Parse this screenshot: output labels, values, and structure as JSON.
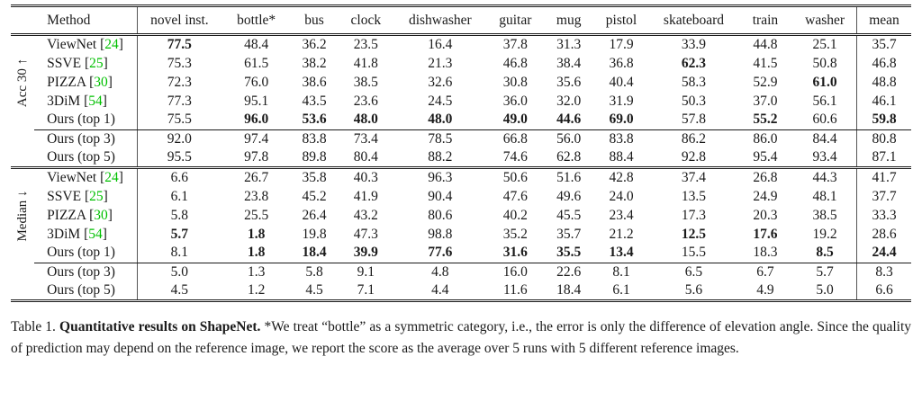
{
  "table": {
    "header": {
      "method_label": "Method",
      "category_labels": [
        "novel inst.",
        "bottle*",
        "bus",
        "clock",
        "dishwasher",
        "guitar",
        "mug",
        "pistol",
        "skateboard",
        "train",
        "washer"
      ],
      "mean_label": "mean"
    },
    "sections": [
      {
        "metric_label": "Acc 30",
        "metric_arrow": "↑",
        "main_rows": [
          {
            "method": "ViewNet",
            "citation": "[24]",
            "values": [
              "77.5",
              "48.4",
              "36.2",
              "23.5",
              "16.4",
              "37.8",
              "31.3",
              "17.9",
              "33.9",
              "44.8",
              "25.1",
              "35.7"
            ],
            "bold_indices": [
              0
            ]
          },
          {
            "method": "SSVE",
            "citation": "[25]",
            "values": [
              "75.3",
              "61.5",
              "38.2",
              "41.8",
              "21.3",
              "46.8",
              "38.4",
              "36.8",
              "62.3",
              "41.5",
              "50.8",
              "46.8"
            ],
            "bold_indices": [
              8
            ]
          },
          {
            "method": "PIZZA",
            "citation": "[30]",
            "values": [
              "72.3",
              "76.0",
              "38.6",
              "38.5",
              "32.6",
              "30.8",
              "35.6",
              "40.4",
              "58.3",
              "52.9",
              "61.0",
              "48.8"
            ],
            "bold_indices": [
              10
            ]
          },
          {
            "method": "3DiM",
            "citation": "[54]",
            "values": [
              "77.3",
              "95.1",
              "43.5",
              "23.6",
              "24.5",
              "36.0",
              "32.0",
              "31.9",
              "50.3",
              "37.0",
              "56.1",
              "46.1"
            ],
            "bold_indices": []
          },
          {
            "method": "Ours (top 1)",
            "citation": "",
            "values": [
              "75.5",
              "96.0",
              "53.6",
              "48.0",
              "48.0",
              "49.0",
              "44.6",
              "69.0",
              "57.8",
              "55.2",
              "60.6",
              "59.8"
            ],
            "bold_indices": [
              1,
              2,
              3,
              4,
              5,
              6,
              7,
              9,
              11
            ]
          }
        ],
        "extra_rows": [
          {
            "method": "Ours (top 3)",
            "citation": "",
            "values": [
              "92.0",
              "97.4",
              "83.8",
              "73.4",
              "78.5",
              "66.8",
              "56.0",
              "83.8",
              "86.2",
              "86.0",
              "84.4",
              "80.8"
            ],
            "bold_indices": []
          },
          {
            "method": "Ours (top 5)",
            "citation": "",
            "values": [
              "95.5",
              "97.8",
              "89.8",
              "80.4",
              "88.2",
              "74.6",
              "62.8",
              "88.4",
              "92.8",
              "95.4",
              "93.4",
              "87.1"
            ],
            "bold_indices": []
          }
        ]
      },
      {
        "metric_label": "Median",
        "metric_arrow": "↓",
        "main_rows": [
          {
            "method": "ViewNet",
            "citation": "[24]",
            "values": [
              "6.6",
              "26.7",
              "35.8",
              "40.3",
              "96.3",
              "50.6",
              "51.6",
              "42.8",
              "37.4",
              "26.8",
              "44.3",
              "41.7"
            ],
            "bold_indices": []
          },
          {
            "method": "SSVE",
            "citation": "[25]",
            "values": [
              "6.1",
              "23.8",
              "45.2",
              "41.9",
              "90.4",
              "47.6",
              "49.6",
              "24.0",
              "13.5",
              "24.9",
              "48.1",
              "37.7"
            ],
            "bold_indices": []
          },
          {
            "method": "PIZZA",
            "citation": "[30]",
            "values": [
              "5.8",
              "25.5",
              "26.4",
              "43.2",
              "80.6",
              "40.2",
              "45.5",
              "23.4",
              "17.3",
              "20.3",
              "38.5",
              "33.3"
            ],
            "bold_indices": []
          },
          {
            "method": "3DiM",
            "citation": "[54]",
            "values": [
              "5.7",
              "1.8",
              "19.8",
              "47.3",
              "98.8",
              "35.2",
              "35.7",
              "21.2",
              "12.5",
              "17.6",
              "19.2",
              "28.6"
            ],
            "bold_indices": [
              0,
              1,
              8,
              9
            ]
          },
          {
            "method": "Ours (top 1)",
            "citation": "",
            "values": [
              "8.1",
              "1.8",
              "18.4",
              "39.9",
              "77.6",
              "31.6",
              "35.5",
              "13.4",
              "15.5",
              "18.3",
              "8.5",
              "24.4"
            ],
            "bold_indices": [
              1,
              2,
              3,
              4,
              5,
              6,
              7,
              10,
              11
            ]
          }
        ],
        "extra_rows": [
          {
            "method": "Ours (top 3)",
            "citation": "",
            "values": [
              "5.0",
              "1.3",
              "5.8",
              "9.1",
              "4.8",
              "16.0",
              "22.6",
              "8.1",
              "6.5",
              "6.7",
              "5.7",
              "8.3"
            ],
            "bold_indices": []
          },
          {
            "method": "Ours (top 5)",
            "citation": "",
            "values": [
              "4.5",
              "1.2",
              "4.5",
              "7.1",
              "4.4",
              "11.6",
              "18.4",
              "6.1",
              "5.6",
              "4.9",
              "5.0",
              "6.6"
            ],
            "bold_indices": []
          }
        ]
      }
    ]
  },
  "caption": {
    "label": "Table 1.",
    "title_bold": "Quantitative results on ShapeNet.",
    "body": "*We treat “bottle” as a symmetric category, i.e., the error is only the difference of elevation angle. Since the quality of prediction may depend on the reference image, we report the score as the average over 5 runs with 5 different reference images."
  },
  "colors": {
    "citation_green": "#00c000",
    "text": "#1a1a1a",
    "rule": "#1a1a1a"
  }
}
